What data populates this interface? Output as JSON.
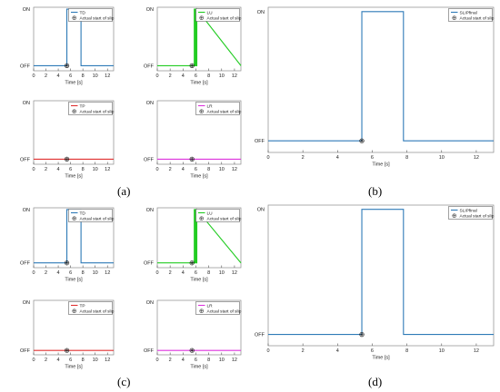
{
  "panel_labels": [
    "(a)",
    "(b)",
    "(c)",
    "(d)"
  ],
  "chart_data": [
    {
      "group": "a",
      "type": "line",
      "xlabel": "Time [s]",
      "ylabel": "",
      "xlim": [
        0,
        13
      ],
      "xticks": [
        0,
        2,
        4,
        6,
        8,
        10,
        12
      ],
      "yticklabels": [
        "OFF",
        "ON"
      ],
      "grid": false,
      "series": [
        {
          "name": "TD",
          "color": "#2e7ab7",
          "x": [
            0,
            5.4,
            5.4,
            7.7,
            7.7,
            13
          ],
          "y": [
            0,
            0,
            1,
            1,
            0,
            0
          ]
        }
      ],
      "marker": {
        "name": "Actual start of slip",
        "x": 5.4,
        "y": 0
      }
    },
    {
      "group": "a",
      "type": "line",
      "xlabel": "Time [s]",
      "ylabel": "",
      "xlim": [
        0,
        13
      ],
      "xticks": [
        0,
        2,
        4,
        6,
        8,
        10,
        12
      ],
      "yticklabels": [
        "OFF",
        "ON"
      ],
      "grid": false,
      "series": [
        {
          "name": "LU",
          "color": "#22cc22",
          "x": [
            0,
            5.75,
            5.75,
            5.85,
            5.85,
            5.95,
            5.95,
            6.05,
            6.05,
            6.15,
            6.15,
            13
          ],
          "y": [
            0,
            0,
            1,
            1,
            0,
            0,
            1,
            1,
            0,
            0,
            1,
            0
          ]
        }
      ],
      "marker": {
        "name": "Actual start of slip",
        "x": 5.4,
        "y": 0
      }
    },
    {
      "group": "a",
      "type": "line",
      "xlabel": "Time [s]",
      "ylabel": "",
      "xlim": [
        0,
        13
      ],
      "xticks": [
        0,
        2,
        4,
        6,
        8,
        10,
        12
      ],
      "yticklabels": [
        "OFF",
        "ON"
      ],
      "grid": false,
      "series": [
        {
          "name": "TP",
          "color": "#e03030",
          "x": [
            0,
            13
          ],
          "y": [
            0,
            0
          ]
        }
      ],
      "marker": {
        "name": "Actual start of slip",
        "x": 5.4,
        "y": 0
      }
    },
    {
      "group": "a",
      "type": "line",
      "xlabel": "Time [s]",
      "ylabel": "",
      "xlim": [
        0,
        13
      ],
      "xticks": [
        0,
        2,
        4,
        6,
        8,
        10,
        12
      ],
      "yticklabels": [
        "OFF",
        "ON"
      ],
      "grid": false,
      "series": [
        {
          "name": "LR",
          "color": "#dd33dd",
          "x": [
            0,
            13
          ],
          "y": [
            0,
            0
          ]
        }
      ],
      "marker": {
        "name": "Actual start of slip",
        "x": 5.4,
        "y": 0
      }
    },
    {
      "group": "b",
      "type": "line",
      "xlabel": "Time [s]",
      "ylabel": "",
      "xlim": [
        0,
        13
      ],
      "xticks": [
        0,
        2,
        4,
        6,
        8,
        10,
        12
      ],
      "yticklabels": [
        "OFF",
        "ON"
      ],
      "grid": false,
      "series": [
        {
          "name": "SLIPfinal",
          "color": "#2e7ab7",
          "x": [
            0,
            5.4,
            5.4,
            7.8,
            7.8,
            13
          ],
          "y": [
            0,
            0,
            1,
            1,
            0,
            0
          ]
        }
      ],
      "marker": {
        "name": "Actual start of slip",
        "x": 5.4,
        "y": 0
      }
    },
    {
      "group": "c",
      "type": "line",
      "xlabel": "Time [s]",
      "ylabel": "",
      "xlim": [
        0,
        13
      ],
      "xticks": [
        0,
        2,
        4,
        6,
        8,
        10,
        12
      ],
      "yticklabels": [
        "OFF",
        "ON"
      ],
      "grid": false,
      "series": [
        {
          "name": "TD",
          "color": "#2e7ab7",
          "x": [
            0,
            5.4,
            5.4,
            7.7,
            7.7,
            13
          ],
          "y": [
            0,
            0,
            1,
            1,
            0,
            0
          ]
        }
      ],
      "marker": {
        "name": "Actual start of slip",
        "x": 5.4,
        "y": 0
      }
    },
    {
      "group": "c",
      "type": "line",
      "xlabel": "Time [s]",
      "ylabel": "",
      "xlim": [
        0,
        13
      ],
      "xticks": [
        0,
        2,
        4,
        6,
        8,
        10,
        12
      ],
      "yticklabels": [
        "OFF",
        "ON"
      ],
      "grid": false,
      "series": [
        {
          "name": "LU",
          "color": "#22cc22",
          "x": [
            0,
            5.75,
            5.75,
            5.85,
            5.85,
            5.95,
            5.95,
            6.05,
            6.05,
            6.15,
            6.15,
            13
          ],
          "y": [
            0,
            0,
            1,
            1,
            0,
            0,
            1,
            1,
            0,
            0,
            1,
            0
          ]
        }
      ],
      "marker": {
        "name": "Actual start of slip",
        "x": 5.4,
        "y": 0
      }
    },
    {
      "group": "c",
      "type": "line",
      "xlabel": "Time [s]",
      "ylabel": "",
      "xlim": [
        0,
        13
      ],
      "xticks": [
        0,
        2,
        4,
        6,
        8,
        10,
        12
      ],
      "yticklabels": [
        "OFF",
        "ON"
      ],
      "grid": false,
      "series": [
        {
          "name": "TP",
          "color": "#e03030",
          "x": [
            0,
            13
          ],
          "y": [
            0,
            0
          ]
        }
      ],
      "marker": {
        "name": "Actual start of slip",
        "x": 5.4,
        "y": 0
      }
    },
    {
      "group": "c",
      "type": "line",
      "xlabel": "Time [s]",
      "ylabel": "",
      "xlim": [
        0,
        13
      ],
      "xticks": [
        0,
        2,
        4,
        6,
        8,
        10,
        12
      ],
      "yticklabels": [
        "OFF",
        "ON"
      ],
      "grid": false,
      "series": [
        {
          "name": "LR",
          "color": "#dd33dd",
          "x": [
            0,
            13
          ],
          "y": [
            0,
            0
          ]
        }
      ],
      "marker": {
        "name": "Actual start of slip",
        "x": 5.4,
        "y": 0
      }
    },
    {
      "group": "d",
      "type": "line",
      "xlabel": "Time [s]",
      "ylabel": "",
      "xlim": [
        0,
        13
      ],
      "xticks": [
        0,
        2,
        4,
        6,
        8,
        10,
        12
      ],
      "yticklabels": [
        "OFF",
        "ON"
      ],
      "grid": false,
      "series": [
        {
          "name": "SLIPfinal",
          "color": "#2e7ab7",
          "x": [
            0,
            5.4,
            5.4,
            7.8,
            7.8,
            13
          ],
          "y": [
            0,
            0,
            1,
            1,
            0,
            0
          ]
        }
      ],
      "marker": {
        "name": "Actual start of slip",
        "x": 5.4,
        "y": 0
      }
    }
  ]
}
